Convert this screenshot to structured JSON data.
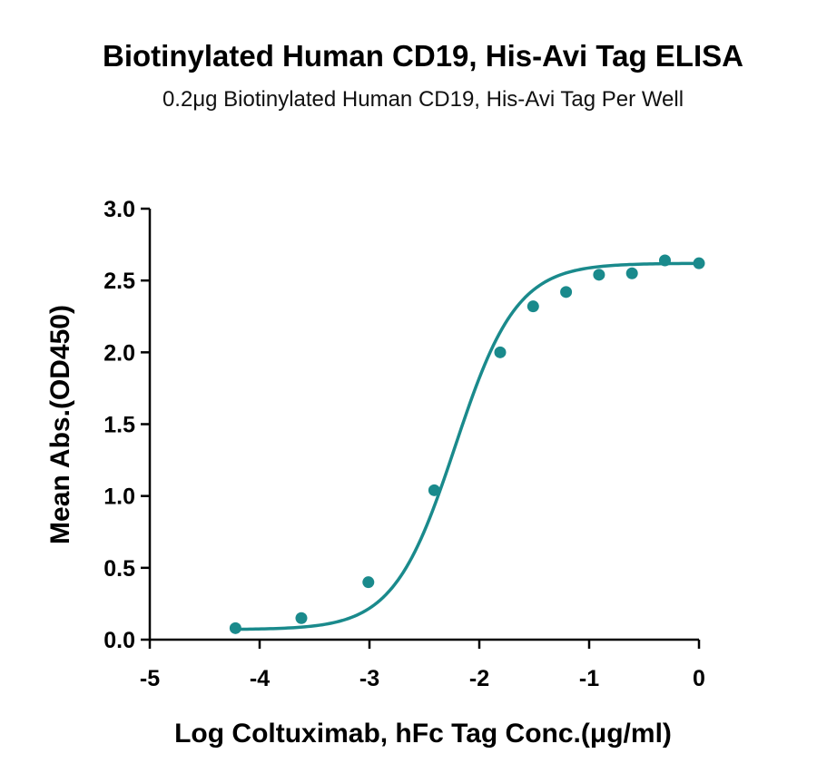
{
  "chart_data": {
    "type": "scatter",
    "title": "Biotinylated Human CD19, His-Avi Tag ELISA",
    "subtitle": "0.2μg Biotinylated Human CD19, His-Avi Tag Per Well",
    "xlabel": "Log Coltuximab, hFc Tag Conc.(μg/ml)",
    "ylabel": "Mean Abs.(OD450)",
    "xlim": [
      -5,
      0
    ],
    "ylim": [
      0,
      3.0
    ],
    "xticks": [
      -5,
      -4,
      -3,
      -2,
      -1,
      0
    ],
    "yticks": [
      0,
      0.5,
      1.0,
      1.5,
      2.0,
      2.5,
      3.0
    ],
    "xtick_labels": [
      "-5",
      "-4",
      "-3",
      "-2",
      "-1",
      "0"
    ],
    "ytick_labels": [
      "0.0",
      "0.5",
      "1.0",
      "1.5",
      "2.0",
      "2.5",
      "3.0"
    ],
    "grid": false,
    "color": "#1a8a8c",
    "series": [
      {
        "x": [
          -4.22,
          -3.62,
          -3.01,
          -2.41,
          -1.81,
          -1.51,
          -1.21,
          -0.91,
          -0.61,
          -0.31,
          0.0
        ],
        "y": [
          0.08,
          0.15,
          0.4,
          1.04,
          2.0,
          2.32,
          2.42,
          2.54,
          2.55,
          2.64,
          2.62
        ]
      }
    ],
    "fit": {
      "type": "4PL",
      "bottom": 0.07,
      "top": 2.62,
      "logEC50": -2.22,
      "hill": 1.55
    }
  }
}
